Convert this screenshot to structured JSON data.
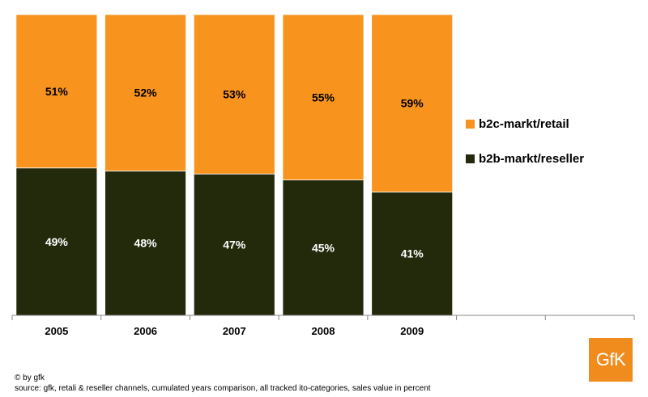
{
  "chart_data": {
    "type": "bar",
    "stacked": true,
    "normalized_percent": true,
    "categories": [
      "2005",
      "2006",
      "2007",
      "2008",
      "2009"
    ],
    "empty_category_slots": 2,
    "series": [
      {
        "name": "b2b-markt/reseller",
        "values": [
          49,
          48,
          47,
          45,
          41
        ],
        "labels": [
          "49%",
          "48%",
          "47%",
          "45%",
          "41%"
        ],
        "color": "#232a0c",
        "label_color": "#ffffff"
      },
      {
        "name": "b2c-markt/retail",
        "values": [
          51,
          52,
          53,
          55,
          59
        ],
        "labels": [
          "51%",
          "52%",
          "53%",
          "55%",
          "59%"
        ],
        "color": "#f8931d",
        "label_color": "#000000"
      }
    ],
    "legend_order": [
      "b2c-markt/retail",
      "b2b-markt/reseller"
    ],
    "legend_position": "right",
    "ylim": [
      0,
      100
    ],
    "grid": false
  },
  "footer": {
    "copyright": "© by gfk",
    "source": "source: gfk,  retali & reseller channels, cumulated years comparison, all tracked ito-categories, sales  value in percent"
  },
  "logo": {
    "text": "GfK",
    "color": "#f08c1e"
  }
}
